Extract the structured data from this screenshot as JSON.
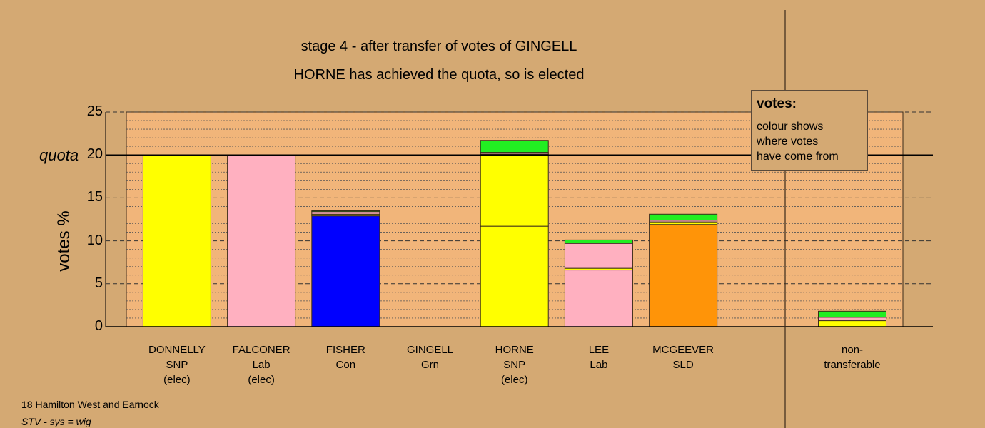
{
  "title_line1": "stage 4 - after transfer of votes of GINGELL",
  "title_line2": "HORNE has achieved the quota, so is elected",
  "legend": {
    "heading": "votes:",
    "lines": [
      "colour shows",
      "where votes",
      "have come from"
    ]
  },
  "footer": {
    "line1": "18 Hamilton West and Earnock",
    "line2": "STV - sys = wig"
  },
  "colors": {
    "background": "#d4a973",
    "plot_area": "#f1b57a",
    "SNP": "#ffff00",
    "Lab": "#ffb0c0",
    "Con": "#0000ff",
    "Grn": "#22ee22",
    "SLD": "#ff9408"
  },
  "chart_data": {
    "type": "bar",
    "stacked": true,
    "title": "stage 4 - after transfer of votes of GINGELL",
    "subtitle": "HORNE has achieved the quota, so is elected",
    "ylabel": "votes %",
    "ylim": [
      0,
      25
    ],
    "yticks": [
      0,
      5,
      10,
      15,
      20,
      25
    ],
    "quota": 20,
    "quota_label": "quota",
    "grid": true,
    "candidates": [
      {
        "name": "DONNELLY",
        "party": "SNP",
        "note": "(elec)",
        "segments": [
          {
            "from": "SNP",
            "value": 20.0
          }
        ]
      },
      {
        "name": "FALCONER",
        "party": "Lab",
        "note": "(elec)",
        "segments": [
          {
            "from": "Lab",
            "value": 20.0
          }
        ]
      },
      {
        "name": "FISHER",
        "party": "Con",
        "note": "",
        "segments": [
          {
            "from": "Con",
            "value": 12.9
          },
          {
            "from": "SNP",
            "value": 0.2
          },
          {
            "from": "Lab",
            "value": 0.3
          },
          {
            "from": "Grn",
            "value": 0.1
          }
        ]
      },
      {
        "name": "GINGELL",
        "party": "Grn",
        "note": "",
        "segments": []
      },
      {
        "name": "HORNE",
        "party": "SNP",
        "note": "(elec)",
        "segments": [
          {
            "from": "SNP",
            "value": 11.7
          },
          {
            "from": "SNP",
            "value": 8.4
          },
          {
            "from": "Lab",
            "value": 0.2
          },
          {
            "from": "Grn",
            "value": 1.4
          }
        ]
      },
      {
        "name": "LEE",
        "party": "Lab",
        "note": "",
        "segments": [
          {
            "from": "Lab",
            "value": 6.6
          },
          {
            "from": "SNP",
            "value": 0.2
          },
          {
            "from": "Lab",
            "value": 2.9
          },
          {
            "from": "Grn",
            "value": 0.4
          }
        ]
      },
      {
        "name": "MCGEEVER",
        "party": "SLD",
        "note": "",
        "segments": [
          {
            "from": "SLD",
            "value": 11.9
          },
          {
            "from": "SNP",
            "value": 0.3
          },
          {
            "from": "Lab",
            "value": 0.2
          },
          {
            "from": "Grn",
            "value": 0.7
          }
        ]
      }
    ],
    "nontransferable": {
      "label_line1": "non-",
      "label_line2": "transferable",
      "segments": [
        {
          "from": "SNP",
          "value": 0.7
        },
        {
          "from": "Lab",
          "value": 0.4
        },
        {
          "from": "Grn",
          "value": 0.7
        }
      ]
    }
  }
}
